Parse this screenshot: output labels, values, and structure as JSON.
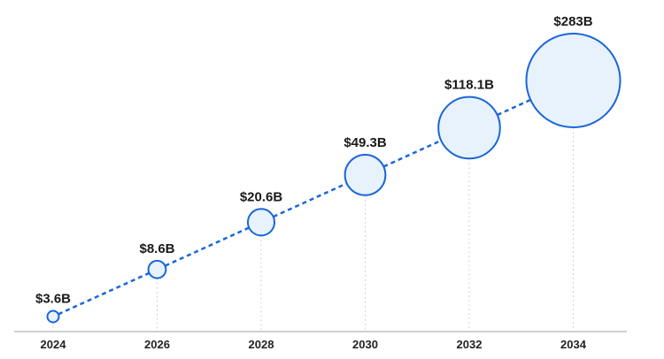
{
  "chart_data": {
    "type": "scatter",
    "title": "",
    "xlabel": "",
    "ylabel": "",
    "x": [
      2024,
      2026,
      2028,
      2030,
      2032,
      2034
    ],
    "values": [
      3.6,
      8.6,
      20.6,
      49.3,
      118.1,
      283
    ],
    "data_labels": [
      "$3.6B",
      "$8.6B",
      "$20.6B",
      "$49.3B",
      "$118.1B",
      "$283B"
    ],
    "tick_labels": [
      "2024",
      "2026",
      "2028",
      "2030",
      "2032",
      "2034"
    ],
    "y_scale": "log",
    "bubble_size_by_value": true,
    "connecting_line": "dashed",
    "grid": false,
    "legend": "none",
    "colors": {
      "marker_stroke": "#1a66d9",
      "marker_fill": "#e8f2fc",
      "line": "#1a66d9",
      "drop_lines": "#cfcfcf",
      "axis": "#b5b5b5",
      "text": "#1a1a1a"
    }
  }
}
